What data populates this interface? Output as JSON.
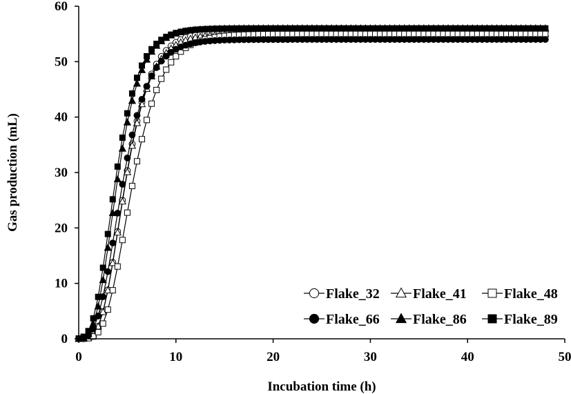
{
  "chart_data": {
    "type": "line",
    "xlabel": "Incubation time (h)",
    "ylabel": "Gas production (mL)",
    "xlim": [
      0,
      50
    ],
    "ylim": [
      0,
      60
    ],
    "x_ticks": [
      "0",
      "10",
      "20",
      "30",
      "40",
      "50"
    ],
    "y_ticks": [
      "0",
      "10",
      "20",
      "30",
      "40",
      "50",
      "60"
    ],
    "grid": false,
    "legend_position": "bottom-right",
    "x_start": 0,
    "x_end": 48,
    "x_step": 0.5,
    "model": "Gompertz",
    "series": [
      {
        "name": "Flake_32",
        "marker": "circle-open",
        "asymptote": 55.5,
        "rate": 0.205,
        "lag": 2.3
      },
      {
        "name": "Flake_41",
        "marker": "triangle-open",
        "asymptote": 55.0,
        "rate": 0.205,
        "lag": 2.3
      },
      {
        "name": "Flake_48",
        "marker": "square-open",
        "asymptote": 55.0,
        "rate": 0.18,
        "lag": 2.7
      },
      {
        "name": "Flake_66",
        "marker": "circle-filled",
        "asymptote": 54.0,
        "rate": 0.2,
        "lag": 1.9
      },
      {
        "name": "Flake_86",
        "marker": "triangle-filled",
        "asymptote": 56.0,
        "rate": 0.225,
        "lag": 1.7
      },
      {
        "name": "Flake_89",
        "marker": "square-filled",
        "asymptote": 56.0,
        "rate": 0.225,
        "lag": 1.5
      }
    ]
  }
}
